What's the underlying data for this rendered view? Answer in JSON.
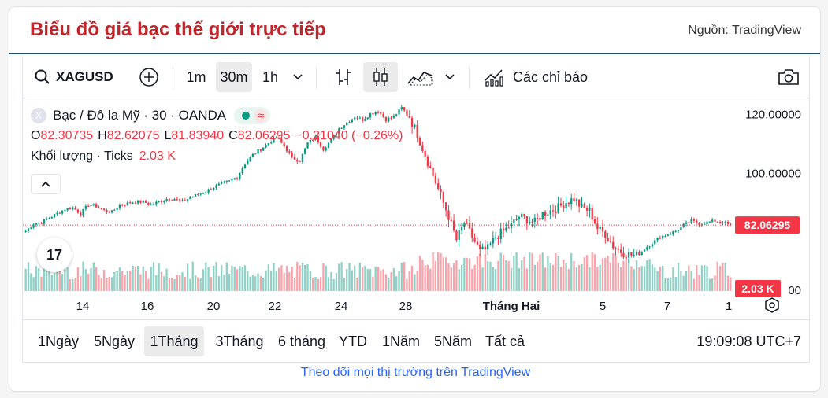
{
  "header": {
    "title": "Biểu đồ giá bạc thế giới trực tiếp",
    "source": "Nguồn: TradingView"
  },
  "toolbar": {
    "symbol": "XAGUSD",
    "intervals": [
      "1m",
      "30m",
      "1h"
    ],
    "active_interval": "30m",
    "indicators_label": "Các chỉ báo"
  },
  "legend": {
    "symbol_x": "X",
    "name": "Bạc / Đô la Mỹ · 30 · OANDA",
    "wave": "≈",
    "ohlc": {
      "o_key": "O",
      "o_val": "82.30735",
      "h_key": "H",
      "h_val": "82.62075",
      "l_key": "L",
      "l_val": "81.83940",
      "c_key": "C",
      "c_val": "82.06295",
      "change": "−0.21040 (−0.26%)"
    },
    "volume_label": "Khối lượng · Ticks",
    "volume_value": "2.03 K"
  },
  "logo_text": "17",
  "chart_data": {
    "type": "candlestick",
    "symbol": "XAGUSD",
    "interval": "30",
    "y_ticks": [
      "120.00000",
      "100.00000",
      "00"
    ],
    "ylim": [
      62,
      125
    ],
    "x_ticks": [
      "14",
      "16",
      "20",
      "22",
      "24",
      "28",
      "Tháng Hai",
      "5",
      "7",
      "1"
    ],
    "last_price": 82.06295,
    "last_price_label": "82.06295",
    "last_volume_label": "2.03 K",
    "price_path": [
      [
        0,
        80
      ],
      [
        3,
        82.5
      ],
      [
        6,
        83
      ],
      [
        9,
        84.5
      ],
      [
        12,
        86
      ],
      [
        15,
        87.5
      ],
      [
        18,
        88
      ],
      [
        21,
        86
      ],
      [
        24,
        89
      ],
      [
        27,
        88.5
      ],
      [
        30,
        87
      ],
      [
        33,
        86.5
      ],
      [
        36,
        89
      ],
      [
        39,
        89.5
      ],
      [
        42,
        90
      ],
      [
        45,
        90
      ],
      [
        48,
        89
      ],
      [
        51,
        90
      ],
      [
        54,
        91
      ],
      [
        57,
        91
      ],
      [
        60,
        90
      ],
      [
        63,
        91.5
      ],
      [
        66,
        92.5
      ],
      [
        69,
        93.5
      ],
      [
        72,
        95
      ],
      [
        75,
        96
      ],
      [
        78,
        97
      ],
      [
        81,
        98.5
      ],
      [
        84,
        103
      ],
      [
        87,
        106
      ],
      [
        90,
        108
      ],
      [
        93,
        110
      ],
      [
        96,
        112
      ],
      [
        99,
        109
      ],
      [
        102,
        105
      ],
      [
        105,
        104
      ],
      [
        108,
        110
      ],
      [
        111,
        112
      ],
      [
        114,
        108
      ],
      [
        117,
        111
      ],
      [
        120,
        115
      ],
      [
        123,
        117
      ],
      [
        126,
        119
      ],
      [
        129,
        118
      ],
      [
        132,
        120
      ],
      [
        135,
        121
      ],
      [
        138,
        118
      ],
      [
        141,
        119
      ],
      [
        144,
        122
      ],
      [
        147,
        119
      ],
      [
        150,
        113
      ],
      [
        153,
        106
      ],
      [
        156,
        99
      ],
      [
        159,
        92
      ],
      [
        162,
        85
      ],
      [
        165,
        77
      ],
      [
        168,
        83
      ],
      [
        171,
        78
      ],
      [
        174,
        73
      ],
      [
        177,
        74
      ],
      [
        180,
        78
      ],
      [
        183,
        80
      ],
      [
        186,
        82
      ],
      [
        189,
        85
      ],
      [
        192,
        84
      ],
      [
        195,
        83
      ],
      [
        198,
        86
      ],
      [
        201,
        87
      ],
      [
        204,
        88
      ],
      [
        207,
        90
      ],
      [
        210,
        91
      ],
      [
        213,
        88
      ],
      [
        216,
        87
      ],
      [
        219,
        81
      ],
      [
        222,
        79
      ],
      [
        225,
        75
      ],
      [
        228,
        73
      ],
      [
        231,
        72
      ],
      [
        234,
        71.5
      ],
      [
        237,
        74
      ],
      [
        240,
        76
      ],
      [
        243,
        78
      ],
      [
        246,
        79
      ],
      [
        249,
        80
      ],
      [
        252,
        82
      ],
      [
        255,
        83.5
      ],
      [
        258,
        82.5
      ],
      [
        261,
        83
      ],
      [
        264,
        83.5
      ],
      [
        267,
        83
      ],
      [
        270,
        82
      ]
    ]
  },
  "ranges": [
    "1Ngày",
    "5Ngày",
    "1Tháng",
    "3Tháng",
    "6 tháng",
    "YTD",
    "1Năm",
    "5Năm",
    "Tất cả"
  ],
  "active_range": "1Tháng",
  "clock": "19:09:08 UTC+7",
  "footer": "Theo dõi mọi thị trường trên TradingView",
  "colors": {
    "up": "#089981",
    "down": "#f23645",
    "title": "#c0272d",
    "link": "#2962ff"
  }
}
